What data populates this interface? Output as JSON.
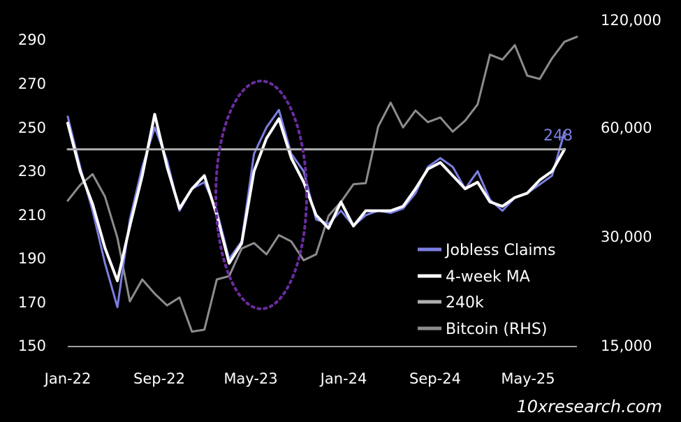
{
  "watermark": "10xresearch.com",
  "chart_data": {
    "type": "line",
    "x_axis": {
      "tick_labels": [
        "Jan-22",
        "Sep-22",
        "May-23",
        "Jan-24",
        "Sep-24",
        "May-25"
      ],
      "range": [
        "2022-01",
        "2025-06"
      ]
    },
    "y_axis_left": {
      "tick_labels": [
        "150",
        "170",
        "190",
        "210",
        "230",
        "250",
        "270",
        "290"
      ],
      "ylim": [
        150,
        295
      ]
    },
    "y_axis_right": {
      "tick_labels": [
        "15,000",
        "30,000",
        "60,000",
        "120,000"
      ],
      "scale": "log",
      "ylim": [
        15000,
        135000
      ]
    },
    "grid": false,
    "legend_position": "bottom-right",
    "end_label": "248",
    "highlight": "dotted ellipse around the 2023 rise in claims",
    "colors": {
      "jobless_claims": "#7b7fe0",
      "ma4": "#ffffff",
      "k240": "#b0b0b0",
      "bitcoin": "#8c8c8c",
      "ellipse": "#6a2c9e",
      "end_label": "#7b7fe0"
    },
    "series": [
      {
        "name": "Jobless Claims",
        "axis": "left",
        "points": [
          [
            "2022-01",
            255
          ],
          [
            "2022-02",
            232
          ],
          [
            "2022-03",
            212
          ],
          [
            "2022-04",
            188
          ],
          [
            "2022-05",
            168
          ],
          [
            "2022-06",
            208
          ],
          [
            "2022-07",
            232
          ],
          [
            "2022-08",
            250
          ],
          [
            "2022-09",
            235
          ],
          [
            "2022-10",
            212
          ],
          [
            "2022-11",
            222
          ],
          [
            "2022-12",
            225
          ],
          [
            "2023-01",
            212
          ],
          [
            "2023-02",
            190
          ],
          [
            "2023-03",
            198
          ],
          [
            "2023-04",
            238
          ],
          [
            "2023-05",
            250
          ],
          [
            "2023-06",
            258
          ],
          [
            "2023-07",
            238
          ],
          [
            "2023-08",
            230
          ],
          [
            "2023-09",
            208
          ],
          [
            "2023-10",
            206
          ],
          [
            "2023-11",
            212
          ],
          [
            "2023-12",
            205
          ],
          [
            "2024-01",
            210
          ],
          [
            "2024-02",
            212
          ],
          [
            "2024-03",
            211
          ],
          [
            "2024-04",
            213
          ],
          [
            "2024-05",
            220
          ],
          [
            "2024-06",
            232
          ],
          [
            "2024-07",
            236
          ],
          [
            "2024-08",
            232
          ],
          [
            "2024-09",
            222
          ],
          [
            "2024-10",
            230
          ],
          [
            "2024-11",
            217
          ],
          [
            "2024-12",
            212
          ],
          [
            "2025-01",
            218
          ],
          [
            "2025-02",
            220
          ],
          [
            "2025-03",
            224
          ],
          [
            "2025-04",
            228
          ],
          [
            "2025-05",
            248
          ]
        ]
      },
      {
        "name": "4-week MA",
        "axis": "left",
        "points": [
          [
            "2022-01",
            252
          ],
          [
            "2022-02",
            230
          ],
          [
            "2022-03",
            215
          ],
          [
            "2022-04",
            195
          ],
          [
            "2022-05",
            180
          ],
          [
            "2022-06",
            205
          ],
          [
            "2022-07",
            228
          ],
          [
            "2022-08",
            256
          ],
          [
            "2022-09",
            232
          ],
          [
            "2022-10",
            213
          ],
          [
            "2022-11",
            222
          ],
          [
            "2022-12",
            228
          ],
          [
            "2023-01",
            210
          ],
          [
            "2023-02",
            188
          ],
          [
            "2023-03",
            197
          ],
          [
            "2023-04",
            230
          ],
          [
            "2023-05",
            245
          ],
          [
            "2023-06",
            254
          ],
          [
            "2023-07",
            236
          ],
          [
            "2023-08",
            225
          ],
          [
            "2023-09",
            210
          ],
          [
            "2023-10",
            204
          ],
          [
            "2023-11",
            216
          ],
          [
            "2023-12",
            205
          ],
          [
            "2024-01",
            212
          ],
          [
            "2024-02",
            212
          ],
          [
            "2024-03",
            212
          ],
          [
            "2024-04",
            214
          ],
          [
            "2024-05",
            222
          ],
          [
            "2024-06",
            231
          ],
          [
            "2024-07",
            234
          ],
          [
            "2024-08",
            228
          ],
          [
            "2024-09",
            222
          ],
          [
            "2024-10",
            225
          ],
          [
            "2024-11",
            216
          ],
          [
            "2024-12",
            214
          ],
          [
            "2025-01",
            218
          ],
          [
            "2025-02",
            220
          ],
          [
            "2025-03",
            226
          ],
          [
            "2025-04",
            230
          ],
          [
            "2025-05",
            240
          ]
        ]
      },
      {
        "name": "240k",
        "axis": "left",
        "points": [
          [
            "2022-01",
            240
          ],
          [
            "2025-05",
            240
          ]
        ]
      },
      {
        "name": "Bitcoin (RHS)",
        "axis": "right",
        "points": [
          [
            "2022-01",
            38000
          ],
          [
            "2022-02",
            42000
          ],
          [
            "2022-03",
            45000
          ],
          [
            "2022-04",
            39000
          ],
          [
            "2022-05",
            30000
          ],
          [
            "2022-06",
            20000
          ],
          [
            "2022-07",
            23000
          ],
          [
            "2022-08",
            21000
          ],
          [
            "2022-09",
            19500
          ],
          [
            "2022-10",
            20500
          ],
          [
            "2022-11",
            16500
          ],
          [
            "2022-12",
            16700
          ],
          [
            "2023-01",
            23000
          ],
          [
            "2023-02",
            23500
          ],
          [
            "2023-03",
            28000
          ],
          [
            "2023-04",
            29000
          ],
          [
            "2023-05",
            27000
          ],
          [
            "2023-06",
            30500
          ],
          [
            "2023-07",
            29300
          ],
          [
            "2023-08",
            26000
          ],
          [
            "2023-09",
            27000
          ],
          [
            "2023-10",
            34500
          ],
          [
            "2023-11",
            37700
          ],
          [
            "2023-12",
            42200
          ],
          [
            "2024-01",
            42500
          ],
          [
            "2024-02",
            61000
          ],
          [
            "2024-03",
            71000
          ],
          [
            "2024-04",
            60600
          ],
          [
            "2024-05",
            67500
          ],
          [
            "2024-06",
            62700
          ],
          [
            "2024-07",
            64600
          ],
          [
            "2024-08",
            59000
          ],
          [
            "2024-09",
            63300
          ],
          [
            "2024-10",
            70200
          ],
          [
            "2024-11",
            96400
          ],
          [
            "2024-12",
            93400
          ],
          [
            "2025-01",
            102400
          ],
          [
            "2025-02",
            84300
          ],
          [
            "2025-03",
            82500
          ],
          [
            "2025-04",
            94200
          ],
          [
            "2025-05",
            104600
          ],
          [
            "2025-06",
            108000
          ]
        ]
      }
    ]
  }
}
